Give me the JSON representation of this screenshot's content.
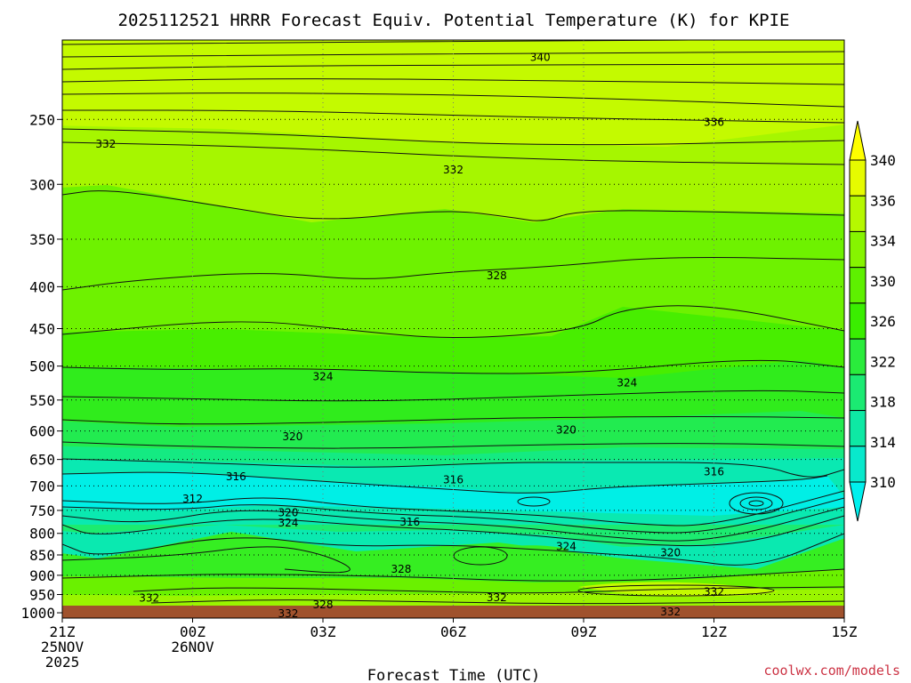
{
  "chart_data": {
    "type": "contour",
    "title": "2025112521 HRRR Forecast Equiv. Potential Temperature (K) for KPIE",
    "xlabel": "Forecast Time (UTC)",
    "ylabel": "",
    "y_scale": "log",
    "y_inverted": true,
    "ylim": [
      1015,
      200
    ],
    "y_ticks": [
      250,
      300,
      350,
      400,
      450,
      500,
      550,
      600,
      650,
      700,
      750,
      800,
      850,
      900,
      950,
      1000
    ],
    "x_ticks": [
      {
        "hour": 0,
        "line1": "21Z",
        "line2": "25NOV",
        "line3": "2025"
      },
      {
        "hour": 3,
        "line1": "00Z",
        "line2": "26NOV",
        "line3": ""
      },
      {
        "hour": 6,
        "line1": "03Z",
        "line2": "",
        "line3": ""
      },
      {
        "hour": 9,
        "line1": "06Z",
        "line2": "",
        "line3": ""
      },
      {
        "hour": 12,
        "line1": "09Z",
        "line2": "",
        "line3": ""
      },
      {
        "hour": 15,
        "line1": "12Z",
        "line2": "",
        "line3": ""
      },
      {
        "hour": 18,
        "line1": "15Z",
        "line2": "",
        "line3": ""
      }
    ],
    "xlim": [
      0,
      18
    ],
    "grid": true,
    "colorbar": {
      "labels": [
        "340",
        "336",
        "334",
        "330",
        "326",
        "322",
        "318",
        "314",
        "310"
      ],
      "colors": [
        "#ffff00",
        "#e6fb00",
        "#b6f800",
        "#86f400",
        "#5ef000",
        "#3aee00",
        "#2aec3c",
        "#1bea72",
        "#0ee9a4",
        "#08e9cc",
        "#00f0ee"
      ]
    },
    "contour_labels": [
      {
        "text": "340",
        "hour": 11.0,
        "p": 210
      },
      {
        "text": "336",
        "hour": 15.0,
        "p": 252
      },
      {
        "text": "332",
        "hour": 1.0,
        "p": 268
      },
      {
        "text": "332",
        "hour": 9.0,
        "p": 288
      },
      {
        "text": "328",
        "hour": 10.0,
        "p": 388
      },
      {
        "text": "324",
        "hour": 6.0,
        "p": 515
      },
      {
        "text": "324",
        "hour": 13.0,
        "p": 524
      },
      {
        "text": "320",
        "hour": 11.6,
        "p": 598
      },
      {
        "text": "320",
        "hour": 5.3,
        "p": 610
      },
      {
        "text": "316",
        "hour": 4.0,
        "p": 682
      },
      {
        "text": "316",
        "hour": 9.0,
        "p": 688
      },
      {
        "text": "316",
        "hour": 15.0,
        "p": 673
      },
      {
        "text": "312",
        "hour": 3.0,
        "p": 726
      },
      {
        "text": "320",
        "hour": 5.2,
        "p": 755
      },
      {
        "text": "324",
        "hour": 5.2,
        "p": 777
      },
      {
        "text": "316",
        "hour": 8.0,
        "p": 775
      },
      {
        "text": "324",
        "hour": 11.6,
        "p": 830
      },
      {
        "text": "320",
        "hour": 14.0,
        "p": 845
      },
      {
        "text": "328",
        "hour": 7.8,
        "p": 885
      },
      {
        "text": "332",
        "hour": 2.0,
        "p": 960
      },
      {
        "text": "328",
        "hour": 6.0,
        "p": 978
      },
      {
        "text": "332",
        "hour": 10.0,
        "p": 958
      },
      {
        "text": "332",
        "hour": 15.0,
        "p": 943
      },
      {
        "text": "332",
        "hour": 5.2,
        "p": 1002
      },
      {
        "text": "332",
        "hour": 14.0,
        "p": 997
      }
    ]
  },
  "credit": {
    "text": "coolwx.com/models",
    "color": "#cc3344"
  }
}
